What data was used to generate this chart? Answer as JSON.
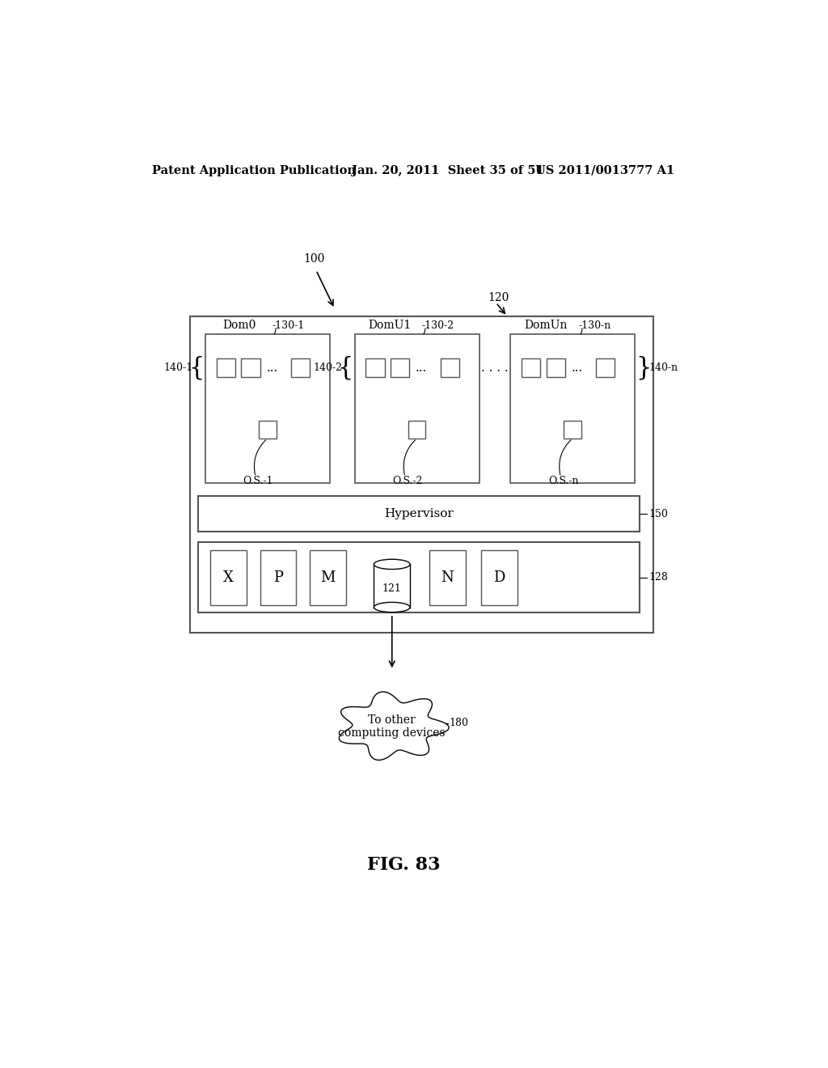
{
  "bg_color": "#ffffff",
  "header_text": "Patent Application Publication",
  "header_date": "Jan. 20, 2011  Sheet 35 of 51",
  "header_patent": "US 2011/0013777 A1",
  "fig_label": "FIG. 83",
  "label_100": "100",
  "label_120": "120",
  "label_150": "150",
  "label_128": "128",
  "label_180": "180",
  "label_130_1": "-130-1",
  "label_130_2": "-130-2",
  "label_130_n": "-130-n",
  "label_140_1": "140-1",
  "label_140_2": "140-2",
  "label_140_n": "140-n",
  "label_dom0": "Dom0",
  "label_domU1": "DomU1",
  "label_domUn": "DomUn",
  "label_os1": "O.S.-1",
  "label_os2": "O.S.-2",
  "label_osn": "O.S.-n",
  "label_hypervisor": "Hypervisor",
  "label_121": "121",
  "hardware_labels": [
    "X",
    "P",
    "M",
    "N",
    "D"
  ],
  "cloud_text": "To other\ncomputing devices"
}
